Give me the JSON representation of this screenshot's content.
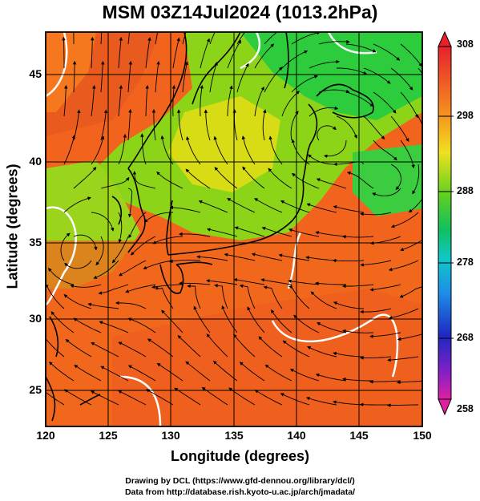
{
  "title": "MSM 03Z14Jul2024 (1013.2hPa)",
  "x_axis": {
    "label": "Longitude (degrees)",
    "ticks": [
      "120",
      "125",
      "130",
      "135",
      "140",
      "145",
      "150"
    ],
    "range": [
      120,
      150
    ]
  },
  "y_axis": {
    "label": "Latitude  (degrees)",
    "ticks": [
      "25",
      "30",
      "35",
      "40",
      "45"
    ],
    "range": [
      22.4,
      47.6
    ]
  },
  "colorbar": {
    "labels": [
      "308",
      "298",
      "288",
      "278",
      "268",
      "258"
    ],
    "range": [
      258,
      308
    ]
  },
  "credits": {
    "line1": "Drawing by DCL (https://www.gfd-dennou.org/library/dcl/)",
    "line2": "Data from http://database.rish.kyoto-u.ac.jp/arch/jmadata/"
  },
  "colors": {
    "warm": "#f2641e",
    "mid": "#c8dc10",
    "cool": "#28c83c",
    "land": "#000000",
    "contour": "#ffffff"
  }
}
